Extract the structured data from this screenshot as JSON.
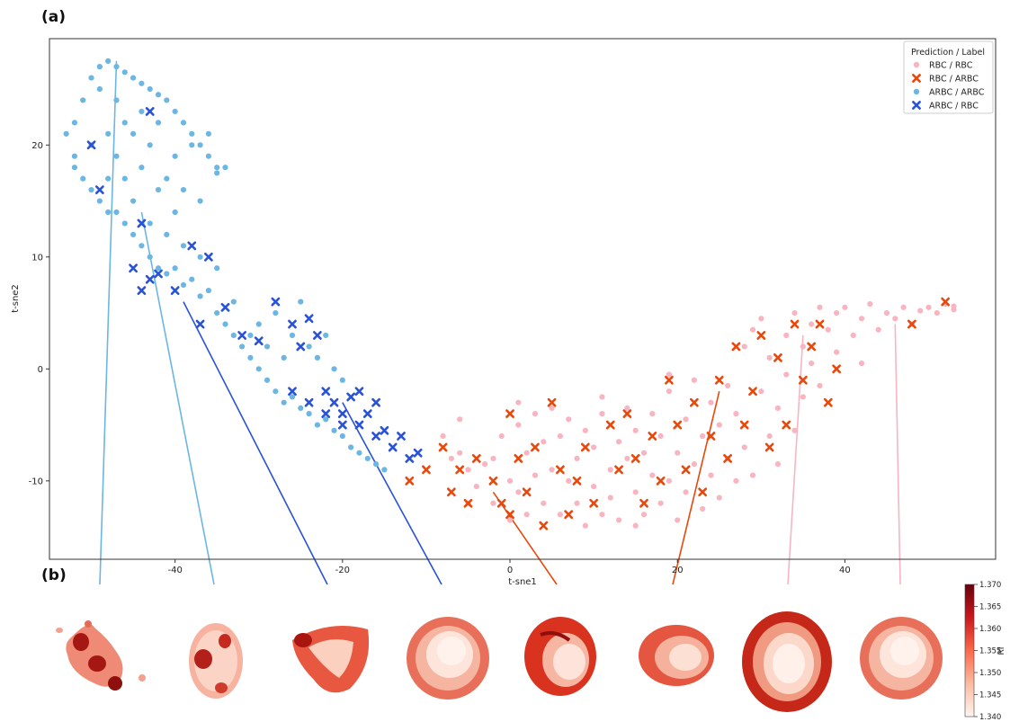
{
  "panels": {
    "a": "(a)",
    "b": "(b)"
  },
  "chart_data": {
    "type": "scatter",
    "title": "",
    "xlabel": "t-sne1",
    "ylabel": "t-sne2",
    "xlim": [
      -55,
      58
    ],
    "ylim": [
      -17,
      29.5
    ],
    "xticks": [
      -40,
      -20,
      0,
      20,
      40
    ],
    "yticks": [
      -10,
      0,
      10,
      20
    ],
    "grid": false,
    "legend_title": "Prediction / Label",
    "legend_position": "top-right",
    "series": [
      {
        "name": "RBC / RBC",
        "marker": "circle",
        "color": "#f8b4c0",
        "points": [
          [
            -8,
            -6
          ],
          [
            -7,
            -8
          ],
          [
            -6,
            -7.5
          ],
          [
            -5,
            -9
          ],
          [
            -4,
            -10.5
          ],
          [
            -3,
            -8.5
          ],
          [
            -2,
            -12
          ],
          [
            -1,
            -6
          ],
          [
            0,
            -10
          ],
          [
            0,
            -13.5
          ],
          [
            1,
            -5
          ],
          [
            1,
            -11
          ],
          [
            2,
            -7.5
          ],
          [
            2,
            -13
          ],
          [
            3,
            -9.5
          ],
          [
            3,
            -4
          ],
          [
            4,
            -12
          ],
          [
            4,
            -6.5
          ],
          [
            5,
            -3.5
          ],
          [
            5,
            -9
          ],
          [
            6,
            -13
          ],
          [
            6,
            -6
          ],
          [
            7,
            -10
          ],
          [
            7,
            -4.5
          ],
          [
            8,
            -12
          ],
          [
            8,
            -8
          ],
          [
            9,
            -14
          ],
          [
            9,
            -5.5
          ],
          [
            10,
            -10.5
          ],
          [
            10,
            -7
          ],
          [
            11,
            -13
          ],
          [
            11,
            -4
          ],
          [
            12,
            -9
          ],
          [
            12,
            -11.5
          ],
          [
            13,
            -6.5
          ],
          [
            13,
            -13.5
          ],
          [
            14,
            -8
          ],
          [
            14,
            -3.5
          ],
          [
            15,
            -11
          ],
          [
            15,
            -5.5
          ],
          [
            16,
            -13
          ],
          [
            16,
            -7.5
          ],
          [
            17,
            -9.5
          ],
          [
            17,
            -4
          ],
          [
            18,
            -12
          ],
          [
            18,
            -6
          ],
          [
            19,
            -10
          ],
          [
            19,
            -2
          ],
          [
            20,
            -13.5
          ],
          [
            20,
            -7.5
          ],
          [
            21,
            -4.5
          ],
          [
            21,
            -11
          ],
          [
            22,
            -8.5
          ],
          [
            22,
            -1
          ],
          [
            23,
            -12.5
          ],
          [
            23,
            -6
          ],
          [
            24,
            -9.5
          ],
          [
            24,
            -3
          ],
          [
            25,
            -11.5
          ],
          [
            25,
            -5
          ],
          [
            26,
            -8
          ],
          [
            26,
            -1.5
          ],
          [
            27,
            -10
          ],
          [
            27,
            -4
          ],
          [
            28,
            2
          ],
          [
            28,
            -7
          ],
          [
            29,
            3.5
          ],
          [
            29,
            -9.5
          ],
          [
            30,
            -2
          ],
          [
            30,
            4.5
          ],
          [
            31,
            -6
          ],
          [
            31,
            1
          ],
          [
            32,
            -8.5
          ],
          [
            32,
            -3.5
          ],
          [
            33,
            3
          ],
          [
            33,
            -0.5
          ],
          [
            34,
            5
          ],
          [
            34,
            -5.5
          ],
          [
            35,
            2
          ],
          [
            35,
            -2.5
          ],
          [
            36,
            4
          ],
          [
            36,
            0.5
          ],
          [
            37,
            5.5
          ],
          [
            37,
            -1.5
          ],
          [
            38,
            3.5
          ],
          [
            39,
            5
          ],
          [
            39,
            1.5
          ],
          [
            40,
            5.5
          ],
          [
            41,
            3
          ],
          [
            42,
            4.5
          ],
          [
            42,
            0.5
          ],
          [
            43,
            5.8
          ],
          [
            44,
            3.5
          ],
          [
            45,
            5
          ],
          [
            46,
            4.5
          ],
          [
            47,
            5.5
          ],
          [
            48,
            4
          ],
          [
            49,
            5.2
          ],
          [
            50,
            5.5
          ],
          [
            51,
            5
          ],
          [
            52,
            5.8
          ],
          [
            53,
            5.3
          ],
          [
            53,
            5.6
          ],
          [
            -6,
            -4.5
          ],
          [
            -5,
            -12
          ],
          [
            -2,
            -8
          ],
          [
            1,
            -3
          ],
          [
            11,
            -2.5
          ],
          [
            15,
            -14
          ],
          [
            19,
            -0.5
          ]
        ]
      },
      {
        "name": "RBC / ARBC",
        "marker": "x",
        "color": "#e8480c",
        "points": [
          [
            -12,
            -10
          ],
          [
            -10,
            -9
          ],
          [
            -8,
            -7
          ],
          [
            -7,
            -11
          ],
          [
            -6,
            -9
          ],
          [
            -5,
            -12
          ],
          [
            -4,
            -8
          ],
          [
            -2,
            -10
          ],
          [
            -1,
            -12
          ],
          [
            0,
            -13
          ],
          [
            0,
            -4
          ],
          [
            1,
            -8
          ],
          [
            2,
            -11
          ],
          [
            3,
            -7
          ],
          [
            4,
            -14
          ],
          [
            5,
            -3
          ],
          [
            6,
            -9
          ],
          [
            7,
            -13
          ],
          [
            8,
            -10
          ],
          [
            9,
            -7
          ],
          [
            10,
            -12
          ],
          [
            12,
            -5
          ],
          [
            13,
            -9
          ],
          [
            14,
            -4
          ],
          [
            15,
            -8
          ],
          [
            16,
            -12
          ],
          [
            17,
            -6
          ],
          [
            18,
            -10
          ],
          [
            19,
            -1
          ],
          [
            20,
            -5
          ],
          [
            21,
            -9
          ],
          [
            22,
            -3
          ],
          [
            23,
            -11
          ],
          [
            24,
            -6
          ],
          [
            25,
            -1
          ],
          [
            26,
            -8
          ],
          [
            27,
            2
          ],
          [
            28,
            -5
          ],
          [
            29,
            -2
          ],
          [
            30,
            3
          ],
          [
            31,
            -7
          ],
          [
            32,
            1
          ],
          [
            33,
            -5
          ],
          [
            34,
            4
          ],
          [
            35,
            -1
          ],
          [
            36,
            2
          ],
          [
            37,
            4
          ],
          [
            38,
            -3
          ],
          [
            39,
            0
          ],
          [
            48,
            4
          ],
          [
            52,
            6
          ]
        ]
      },
      {
        "name": "ARBC / ARBC",
        "marker": "circle",
        "color": "#6cb6e4",
        "points": [
          [
            -49,
            27
          ],
          [
            -48,
            27.5
          ],
          [
            -47,
            27
          ],
          [
            -46,
            26.5
          ],
          [
            -45,
            26
          ],
          [
            -44,
            25.5
          ],
          [
            -43,
            25
          ],
          [
            -42,
            24.5
          ],
          [
            -41,
            24
          ],
          [
            -40,
            23
          ],
          [
            -39,
            22
          ],
          [
            -38,
            21
          ],
          [
            -37,
            20
          ],
          [
            -36,
            19
          ],
          [
            -35,
            18
          ],
          [
            -34,
            18
          ],
          [
            -50,
            26
          ],
          [
            -51,
            24
          ],
          [
            -52,
            22
          ],
          [
            -53,
            21
          ],
          [
            -52,
            19
          ],
          [
            -51,
            17
          ],
          [
            -50,
            16
          ],
          [
            -49,
            15
          ],
          [
            -48,
            17
          ],
          [
            -47,
            14
          ],
          [
            -46,
            13
          ],
          [
            -45,
            12
          ],
          [
            -44,
            11
          ],
          [
            -43,
            10
          ],
          [
            -42,
            9
          ],
          [
            -41,
            8.5
          ],
          [
            -40,
            9
          ],
          [
            -39,
            7.5
          ],
          [
            -38,
            8
          ],
          [
            -37,
            6.5
          ],
          [
            -36,
            7
          ],
          [
            -35,
            5
          ],
          [
            -34,
            4
          ],
          [
            -33,
            3
          ],
          [
            -32,
            2
          ],
          [
            -31,
            1
          ],
          [
            -30,
            0
          ],
          [
            -29,
            -1
          ],
          [
            -28,
            -2
          ],
          [
            -27,
            -3
          ],
          [
            -26,
            -2.5
          ],
          [
            -25,
            -3.5
          ],
          [
            -24,
            -4
          ],
          [
            -23,
            -5
          ],
          [
            -22,
            -4.5
          ],
          [
            -21,
            -5.5
          ],
          [
            -20,
            -6
          ],
          [
            -19,
            -7
          ],
          [
            -18,
            -7.5
          ],
          [
            -17,
            -8
          ],
          [
            -16,
            -8.5
          ],
          [
            -15,
            -9
          ],
          [
            -30,
            4
          ],
          [
            -28,
            5
          ],
          [
            -26,
            3
          ],
          [
            -25,
            6
          ],
          [
            -24,
            2
          ],
          [
            -23,
            1
          ],
          [
            -22,
            3
          ],
          [
            -21,
            0
          ],
          [
            -20,
            -1
          ],
          [
            -27,
            1
          ],
          [
            -29,
            2
          ],
          [
            -31,
            3
          ],
          [
            -33,
            6
          ],
          [
            -35,
            9
          ],
          [
            -37,
            10
          ],
          [
            -39,
            11
          ],
          [
            -41,
            12
          ],
          [
            -43,
            13
          ],
          [
            -45,
            15
          ],
          [
            -47,
            19
          ],
          [
            -46,
            22
          ],
          [
            -44,
            23
          ],
          [
            -42,
            22
          ],
          [
            -40,
            19
          ],
          [
            -38,
            20
          ],
          [
            -36,
            21
          ],
          [
            -35,
            17.5
          ],
          [
            -48,
            21
          ],
          [
            -50,
            20
          ],
          [
            -52,
            18
          ],
          [
            -49,
            25
          ],
          [
            -47,
            24
          ],
          [
            -45,
            21
          ],
          [
            -43,
            20
          ],
          [
            -41,
            17
          ],
          [
            -39,
            16
          ],
          [
            -37,
            15
          ],
          [
            -40,
            14
          ],
          [
            -42,
            16
          ],
          [
            -44,
            18
          ],
          [
            -46,
            17
          ],
          [
            -48,
            14
          ]
        ]
      },
      {
        "name": "ARBC / RBC",
        "marker": "x",
        "color": "#2a52d6",
        "points": [
          [
            -50,
            20
          ],
          [
            -49,
            16
          ],
          [
            -43,
            23
          ],
          [
            -44,
            13
          ],
          [
            -45,
            9
          ],
          [
            -44,
            7
          ],
          [
            -43,
            8
          ],
          [
            -42,
            8.5
          ],
          [
            -40,
            7
          ],
          [
            -38,
            11
          ],
          [
            -37,
            4
          ],
          [
            -36,
            10
          ],
          [
            -34,
            5.5
          ],
          [
            -32,
            3
          ],
          [
            -30,
            2.5
          ],
          [
            -28,
            6
          ],
          [
            -26,
            4
          ],
          [
            -25,
            2
          ],
          [
            -24,
            4.5
          ],
          [
            -23,
            3
          ],
          [
            -22,
            -2
          ],
          [
            -21,
            -3
          ],
          [
            -20,
            -4
          ],
          [
            -19,
            -2.5
          ],
          [
            -18,
            -5
          ],
          [
            -17,
            -4
          ],
          [
            -16,
            -6
          ],
          [
            -15,
            -5.5
          ],
          [
            -14,
            -7
          ],
          [
            -13,
            -6
          ],
          [
            -12,
            -8
          ],
          [
            -11,
            -7.5
          ],
          [
            -16,
            -3
          ],
          [
            -18,
            -2
          ],
          [
            -20,
            -5
          ],
          [
            -22,
            -4
          ],
          [
            -24,
            -3
          ],
          [
            -26,
            -2
          ]
        ]
      }
    ],
    "leader_lines": [
      {
        "from": [
          -47,
          27.5
        ],
        "color": "#6cb6e4"
      },
      {
        "from": [
          -44,
          14
        ],
        "color": "#6cb6e4"
      },
      {
        "from": [
          -39,
          6
        ],
        "color": "#2a52d6"
      },
      {
        "from": [
          -20,
          -3
        ],
        "color": "#2a52d6"
      },
      {
        "from": [
          -2,
          -11
        ],
        "color": "#e8480c"
      },
      {
        "from": [
          25,
          -2
        ],
        "color": "#e8480c"
      },
      {
        "from": [
          35,
          3
        ],
        "color": "#f5b6c2"
      },
      {
        "from": [
          46,
          4
        ],
        "color": "#f5b6c2"
      }
    ]
  },
  "cell_images": [
    {
      "shape": "irregular-spiky",
      "color": "#d4301e"
    },
    {
      "shape": "round-dark-spots",
      "color": "#d4301e"
    },
    {
      "shape": "triangular",
      "color": "#c52018"
    },
    {
      "shape": "biconcave-pale",
      "color": "#e8705a"
    },
    {
      "shape": "folded",
      "color": "#d4301e"
    },
    {
      "shape": "small-biconcave",
      "color": "#e0503a"
    },
    {
      "shape": "large-biconcave",
      "color": "#d4301e"
    },
    {
      "shape": "biconcave-pale",
      "color": "#e8705a"
    }
  ],
  "colorbar": {
    "label": "RI",
    "ticks": [
      "1.370",
      "1.365",
      "1.360",
      "1.355",
      "1.350",
      "1.345",
      "1.340"
    ]
  }
}
